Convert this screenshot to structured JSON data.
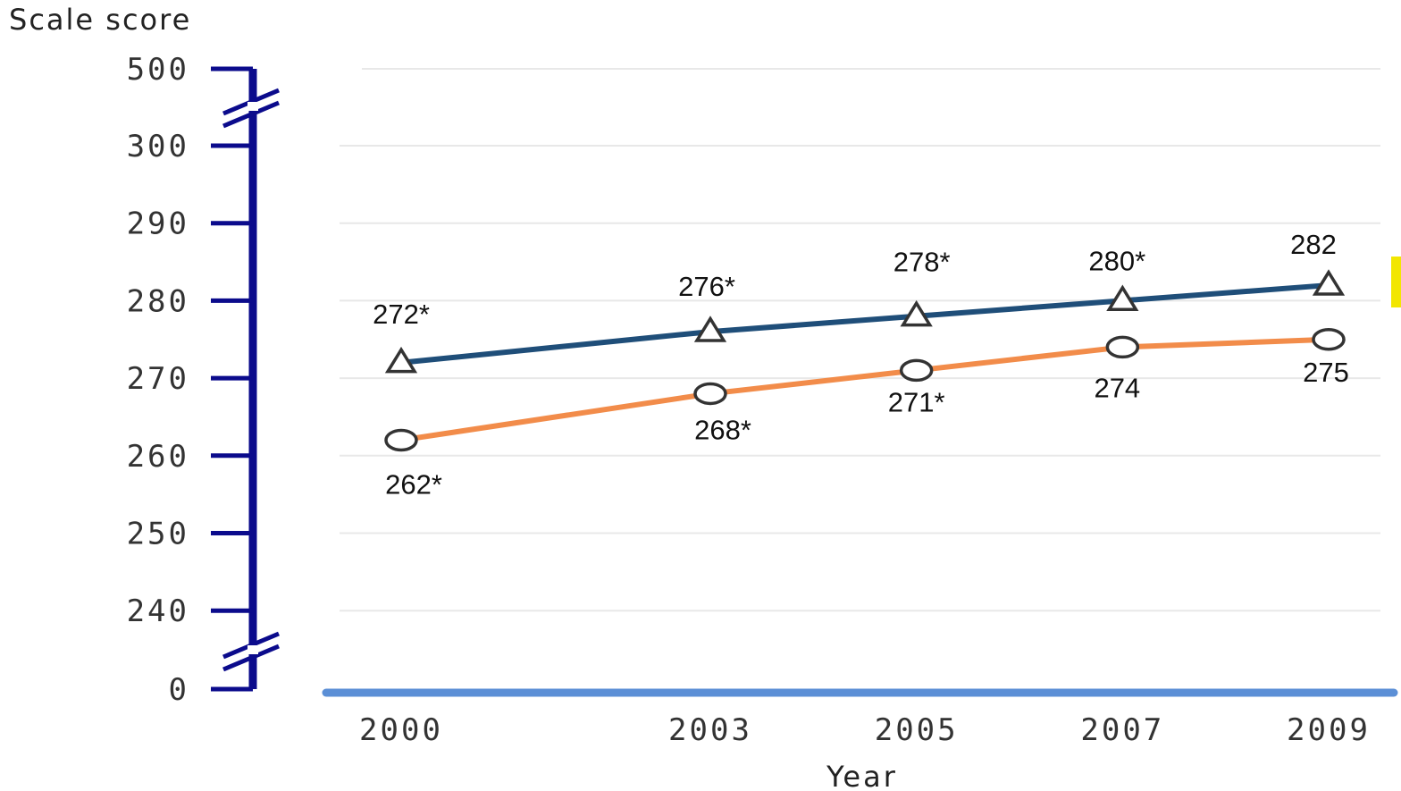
{
  "chart_data": {
    "type": "line",
    "title": "",
    "ylabel": "Scale score",
    "xlabel": "Year",
    "x": [
      "2000",
      "2003",
      "2005",
      "2007",
      "2009"
    ],
    "y_ticks": [
      "0",
      "240",
      "250",
      "260",
      "270",
      "280",
      "290",
      "300",
      "500"
    ],
    "ylim": [
      240,
      300
    ],
    "axis_breaks": [
      "between 0 and 240",
      "between 300 and 500"
    ],
    "grid": true,
    "legend": "none",
    "series": [
      {
        "marker": "triangle",
        "color": "#1f4e79",
        "values": [
          272,
          276,
          278,
          280,
          282
        ],
        "labels": [
          "272*",
          "276*",
          "278*",
          "280*",
          "282"
        ]
      },
      {
        "marker": "circle",
        "color": "#f28c4a",
        "values": [
          262,
          268,
          271,
          274,
          275
        ],
        "labels": [
          "262*",
          "268*",
          "271*",
          "274",
          "275"
        ]
      }
    ],
    "colors": {
      "axis": "#0b0b8c",
      "baseline": "#5b8fd6",
      "grid": "#e8e8e8",
      "marker_fill": "#ffffff",
      "marker_stroke": "#333333",
      "right_edge_marker": "#f2e600"
    }
  }
}
